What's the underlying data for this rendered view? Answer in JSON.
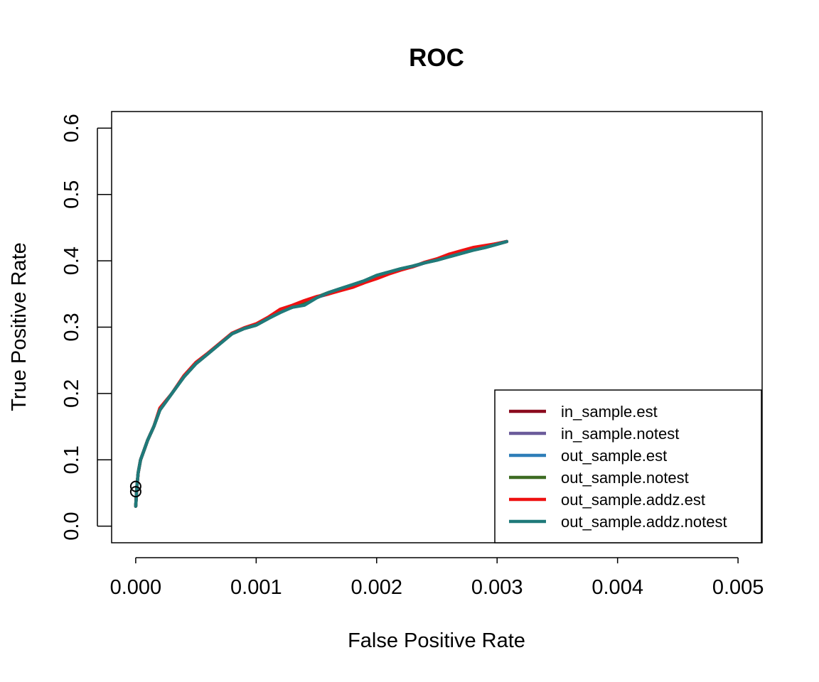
{
  "chart_data": {
    "type": "line",
    "title": "ROC",
    "xlabel": "False Positive Rate",
    "ylabel": "True Positive Rate",
    "xlim": [
      -0.0002,
      0.0052
    ],
    "ylim": [
      -0.025,
      0.625
    ],
    "x_ticks": [
      0,
      0.001,
      0.002,
      0.003,
      0.004,
      0.005
    ],
    "x_tick_labels": [
      "0.000",
      "0.001",
      "0.002",
      "0.003",
      "0.004",
      "0.005"
    ],
    "y_ticks": [
      0,
      0.1,
      0.2,
      0.3,
      0.4,
      0.5,
      0.6
    ],
    "y_tick_labels": [
      "0.0",
      "0.1",
      "0.2",
      "0.3",
      "0.4",
      "0.5",
      "0.6"
    ],
    "grid": false,
    "legend_position": "bottom-right",
    "series": [
      {
        "name": "in_sample.est",
        "color": "#8B0A1E",
        "x": [
          0,
          1e-05,
          2e-05,
          4e-05,
          7e-05,
          0.0001,
          0.00015,
          0.0002,
          0.0003,
          0.0004,
          0.0005,
          0.0006,
          0.0007,
          0.0008,
          0.0009,
          0.001,
          0.0011,
          0.0012,
          0.0013,
          0.0014,
          0.0015,
          0.0016,
          0.0017,
          0.0018,
          0.0019,
          0.002,
          0.0021,
          0.0022,
          0.0023,
          0.0024,
          0.0025,
          0.0026,
          0.0027,
          0.0028,
          0.0029,
          0.003,
          0.00308
        ],
        "y": [
          0.03,
          0.06,
          0.08,
          0.1,
          0.115,
          0.13,
          0.15,
          0.175,
          0.2,
          0.225,
          0.245,
          0.26,
          0.275,
          0.29,
          0.298,
          0.303,
          0.313,
          0.325,
          0.33,
          0.338,
          0.345,
          0.35,
          0.356,
          0.362,
          0.368,
          0.374,
          0.381,
          0.387,
          0.391,
          0.397,
          0.402,
          0.408,
          0.413,
          0.418,
          0.422,
          0.426,
          0.429
        ]
      },
      {
        "name": "in_sample.notest",
        "color": "#6B5B9A",
        "x": [
          0,
          1e-05,
          2e-05,
          4e-05,
          7e-05,
          0.0001,
          0.00015,
          0.0002,
          0.0003,
          0.0004,
          0.0005,
          0.0006,
          0.0007,
          0.0008,
          0.0009,
          0.001,
          0.0011,
          0.0012,
          0.0013,
          0.0014,
          0.0015,
          0.0016,
          0.0017,
          0.0018,
          0.0019,
          0.002,
          0.0021,
          0.0022,
          0.0023,
          0.0024,
          0.0025,
          0.0026,
          0.0027,
          0.0028,
          0.0029,
          0.003,
          0.00308
        ],
        "y": [
          0.03,
          0.06,
          0.08,
          0.1,
          0.115,
          0.13,
          0.15,
          0.175,
          0.2,
          0.225,
          0.245,
          0.26,
          0.275,
          0.29,
          0.298,
          0.303,
          0.313,
          0.325,
          0.33,
          0.338,
          0.345,
          0.35,
          0.356,
          0.362,
          0.368,
          0.374,
          0.381,
          0.387,
          0.391,
          0.397,
          0.402,
          0.408,
          0.413,
          0.418,
          0.422,
          0.426,
          0.429
        ]
      },
      {
        "name": "out_sample.est",
        "color": "#2E7EB8",
        "x": [
          0,
          1e-05,
          2e-05,
          4e-05,
          7e-05,
          0.0001,
          0.00015,
          0.0002,
          0.0003,
          0.0004,
          0.0005,
          0.0006,
          0.0007,
          0.0008,
          0.0009,
          0.001,
          0.0011,
          0.0012,
          0.0013,
          0.0014,
          0.0015,
          0.0016,
          0.0017,
          0.0018,
          0.0019,
          0.002,
          0.0021,
          0.0022,
          0.0023,
          0.0024,
          0.0025,
          0.0026,
          0.0027,
          0.0028,
          0.0029,
          0.003,
          0.00308
        ],
        "y": [
          0.03,
          0.06,
          0.08,
          0.1,
          0.115,
          0.13,
          0.15,
          0.175,
          0.2,
          0.225,
          0.245,
          0.26,
          0.275,
          0.29,
          0.298,
          0.303,
          0.313,
          0.323,
          0.33,
          0.335,
          0.345,
          0.352,
          0.358,
          0.364,
          0.37,
          0.378,
          0.383,
          0.388,
          0.392,
          0.397,
          0.401,
          0.406,
          0.411,
          0.416,
          0.42,
          0.425,
          0.429
        ]
      },
      {
        "name": "out_sample.notest",
        "color": "#3D6B22",
        "x": [
          0,
          1e-05,
          2e-05,
          4e-05,
          7e-05,
          0.0001,
          0.00015,
          0.0002,
          0.0003,
          0.0004,
          0.0005,
          0.0006,
          0.0007,
          0.0008,
          0.0009,
          0.001,
          0.0011,
          0.0012,
          0.0013,
          0.0014,
          0.0015,
          0.0016,
          0.0017,
          0.0018,
          0.0019,
          0.002,
          0.0021,
          0.0022,
          0.0023,
          0.0024,
          0.0025,
          0.0026,
          0.0027,
          0.0028,
          0.0029,
          0.003,
          0.00308
        ],
        "y": [
          0.03,
          0.06,
          0.08,
          0.1,
          0.115,
          0.13,
          0.15,
          0.175,
          0.2,
          0.225,
          0.245,
          0.26,
          0.275,
          0.29,
          0.298,
          0.303,
          0.313,
          0.323,
          0.33,
          0.335,
          0.345,
          0.352,
          0.358,
          0.364,
          0.37,
          0.378,
          0.383,
          0.388,
          0.392,
          0.397,
          0.401,
          0.406,
          0.411,
          0.416,
          0.42,
          0.425,
          0.429
        ]
      },
      {
        "name": "out_sample.addz.est",
        "color": "#EE1111",
        "x": [
          0,
          1e-05,
          2e-05,
          4e-05,
          7e-05,
          0.0001,
          0.00015,
          0.0002,
          0.0003,
          0.0004,
          0.0005,
          0.0006,
          0.0007,
          0.0008,
          0.0009,
          0.001,
          0.0011,
          0.0012,
          0.0013,
          0.0014,
          0.0015,
          0.0016,
          0.0017,
          0.0018,
          0.0019,
          0.002,
          0.0021,
          0.0022,
          0.0023,
          0.0024,
          0.0025,
          0.0026,
          0.0027,
          0.0028,
          0.0029,
          0.003,
          0.00308
        ],
        "y": [
          0.03,
          0.06,
          0.08,
          0.1,
          0.115,
          0.13,
          0.15,
          0.178,
          0.2,
          0.227,
          0.247,
          0.261,
          0.276,
          0.291,
          0.299,
          0.305,
          0.315,
          0.327,
          0.333,
          0.34,
          0.346,
          0.35,
          0.355,
          0.36,
          0.367,
          0.373,
          0.38,
          0.386,
          0.391,
          0.398,
          0.403,
          0.41,
          0.415,
          0.42,
          0.423,
          0.426,
          0.429
        ]
      },
      {
        "name": "out_sample.addz.notest",
        "color": "#1F7A7A",
        "x": [
          0,
          1e-05,
          2e-05,
          4e-05,
          7e-05,
          0.0001,
          0.00015,
          0.0002,
          0.0003,
          0.0004,
          0.0005,
          0.0006,
          0.0007,
          0.0008,
          0.0009,
          0.001,
          0.0011,
          0.0012,
          0.0013,
          0.0014,
          0.0015,
          0.0016,
          0.0017,
          0.0018,
          0.0019,
          0.002,
          0.0021,
          0.0022,
          0.0023,
          0.0024,
          0.0025,
          0.0026,
          0.0027,
          0.0028,
          0.0029,
          0.003,
          0.00308
        ],
        "y": [
          0.03,
          0.06,
          0.08,
          0.1,
          0.115,
          0.13,
          0.15,
          0.175,
          0.2,
          0.225,
          0.245,
          0.26,
          0.275,
          0.29,
          0.298,
          0.303,
          0.313,
          0.322,
          0.33,
          0.333,
          0.344,
          0.352,
          0.358,
          0.364,
          0.37,
          0.378,
          0.383,
          0.388,
          0.392,
          0.397,
          0.401,
          0.406,
          0.411,
          0.416,
          0.42,
          0.425,
          0.429
        ]
      }
    ],
    "markers": [
      {
        "x": 0,
        "y": 0.06
      },
      {
        "x": 0,
        "y": 0.052
      }
    ]
  }
}
